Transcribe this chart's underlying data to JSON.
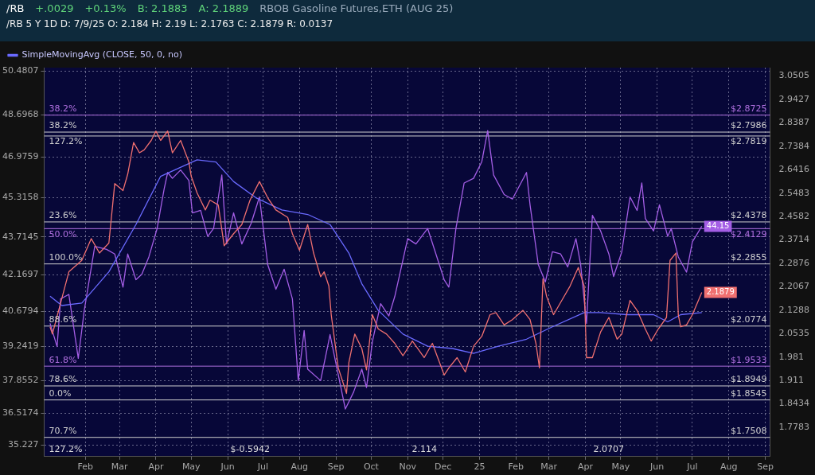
{
  "chart_data": {
    "type": "line",
    "title": "RBOB Gasoline Futures,ETH (AUG 25)",
    "subtitle": "/RB 5 Y 1D   D: 7/9/25   O: 2.184   H: 2.19   L: 2.1763   C: 2.1879   R: 0.0137",
    "annotations": [
      "/RB",
      "+.0029",
      "+0.13%",
      "B: 2.1883",
      "A: 2.1889",
      "38.2%",
      "38.2%",
      "127.2%",
      "23.6%",
      "50.0%",
      "100.0%",
      "88.6%",
      "61.8%",
      "78.6%",
      "0.0%",
      "70.7%",
      "127.2%",
      "$-0.5942",
      "2.114",
      "2.0707"
    ],
    "xlim": [
      "2023-12-28",
      "2025-09-05"
    ],
    "xticks": [
      {
        "value": "2024-02-01",
        "label": "Feb"
      },
      {
        "value": "2024-03-01",
        "label": "Mar"
      },
      {
        "value": "2024-04-01",
        "label": "Apr"
      },
      {
        "value": "2024-05-01",
        "label": "May"
      },
      {
        "value": "2024-06-01",
        "label": "Jun"
      },
      {
        "value": "2024-07-01",
        "label": "Jul"
      },
      {
        "value": "2024-08-01",
        "label": "Aug"
      },
      {
        "value": "2024-09-01",
        "label": "Sep"
      },
      {
        "value": "2024-10-01",
        "label": "Oct"
      },
      {
        "value": "2024-11-01",
        "label": "Nov"
      },
      {
        "value": "2024-12-01",
        "label": "Dec"
      },
      {
        "value": "2025-01-01",
        "label": "25"
      },
      {
        "value": "2025-02-01",
        "label": "Feb"
      },
      {
        "value": "2025-03-01",
        "label": "Mar"
      },
      {
        "value": "2025-04-01",
        "label": "Apr"
      },
      {
        "value": "2025-05-01",
        "label": "May"
      },
      {
        "value": "2025-06-01",
        "label": "Jun"
      },
      {
        "value": "2025-07-01",
        "label": "Jul"
      },
      {
        "value": "2025-08-01",
        "label": "Aug"
      },
      {
        "value": "2025-09-01",
        "label": "Sep"
      }
    ],
    "ylim": [
      34.75,
      50.63
    ],
    "yticks": [
      35.227,
      36.5174,
      37.8552,
      39.2419,
      40.6794,
      42.1697,
      43.7145,
      45.3158,
      46.9759,
      48.6968,
      50.4807
    ],
    "y2lim": [
      1.745,
      3.09
    ],
    "y2ticks": [
      1.7783,
      1.8434,
      1.911,
      1.981,
      2.0535,
      2.1288,
      2.2067,
      2.2876,
      2.3714,
      2.4582,
      2.5483,
      2.6416,
      2.7384,
      2.8387,
      2.9427,
      3.0505
    ],
    "log": "y2",
    "grid": true,
    "legend": "top left",
    "ref_lines": [
      {
        "axis": "y2",
        "value": 2.8725,
        "label": "$2.8725",
        "color": "#b070e0"
      },
      {
        "axis": "y2",
        "value": 2.7986,
        "label": "$2.7986",
        "color": "#cfcfcf"
      },
      {
        "axis": "y2",
        "value": 2.7819,
        "label": "$2.7819",
        "color": "#cfcfcf"
      },
      {
        "axis": "y2",
        "value": 2.4378,
        "label": "$2.4378",
        "color": "#cfcfcf"
      },
      {
        "axis": "y2",
        "value": 2.4129,
        "label": "$2.4129",
        "color": "#b070e0"
      },
      {
        "axis": "y2",
        "value": 2.2855,
        "label": "$2.2855",
        "color": "#cfcfcf"
      },
      {
        "axis": "y2",
        "value": 2.0774,
        "label": "$2.0774",
        "color": "#cfcfcf"
      },
      {
        "axis": "y2",
        "value": 1.9533,
        "label": "$1.9533",
        "color": "#b070e0"
      },
      {
        "axis": "y2",
        "value": 1.8949,
        "label": "$1.8949",
        "color": "#cfcfcf"
      },
      {
        "axis": "y2",
        "value": 1.8545,
        "label": "$1.8545",
        "color": "#cfcfcf"
      },
      {
        "axis": "y2",
        "value": 1.7508,
        "label": "$1.7508",
        "color": "#cfcfcf"
      }
    ],
    "series": [
      {
        "color": "#f07070",
        "axis": "y2",
        "x": [
          "2024-01-02",
          "2024-01-04",
          "2024-01-18",
          "2024-01-29",
          "2024-02-06",
          "2024-02-13",
          "2024-02-21",
          "2024-02-26",
          "2024-03-04",
          "2024-03-08",
          "2024-03-13",
          "2024-03-18",
          "2024-03-22",
          "2024-03-28",
          "2024-04-01",
          "2024-04-05",
          "2024-04-11",
          "2024-04-15",
          "2024-04-22",
          "2024-04-29",
          "2024-05-01",
          "2024-05-06",
          "2024-05-13",
          "2024-05-17",
          "2024-05-24",
          "2024-05-29",
          "2024-06-06",
          "2024-06-13",
          "2024-06-20",
          "2024-06-28",
          "2024-07-05",
          "2024-07-12",
          "2024-07-22",
          "2024-07-26",
          "2024-08-01",
          "2024-08-08",
          "2024-08-13",
          "2024-08-19",
          "2024-08-22",
          "2024-08-26",
          "2024-08-28",
          "2024-09-03",
          "2024-09-10",
          "2024-09-12",
          "2024-09-17",
          "2024-09-23",
          "2024-09-27",
          "2024-10-02",
          "2024-10-07",
          "2024-10-14",
          "2024-10-21",
          "2024-10-28",
          "2024-11-05",
          "2024-11-15",
          "2024-11-22",
          "2024-12-02",
          "2024-12-06",
          "2024-12-13",
          "2024-12-20",
          "2024-12-27",
          "2025-01-03",
          "2025-01-10",
          "2025-01-15",
          "2025-01-22",
          "2025-01-29",
          "2025-02-07",
          "2025-02-13",
          "2025-02-18",
          "2025-02-21",
          "2025-02-24",
          "2025-02-27",
          "2025-03-05",
          "2025-03-12",
          "2025-03-19",
          "2025-03-26",
          "2025-03-31",
          "2025-04-02",
          "2025-04-07",
          "2025-04-14",
          "2025-04-21",
          "2025-04-28",
          "2025-05-02",
          "2025-05-09",
          "2025-05-15",
          "2025-05-22",
          "2025-05-27",
          "2025-06-02",
          "2025-06-09",
          "2025-06-12",
          "2025-06-17",
          "2025-06-19",
          "2025-06-21",
          "2025-06-26",
          "2025-07-01",
          "2025-07-09"
        ],
        "values": [
          2.075,
          2.052,
          2.258,
          2.298,
          2.376,
          2.324,
          2.36,
          2.586,
          2.558,
          2.623,
          2.754,
          2.711,
          2.723,
          2.763,
          2.803,
          2.763,
          2.803,
          2.711,
          2.763,
          2.673,
          2.615,
          2.549,
          2.483,
          2.521,
          2.502,
          2.35,
          2.394,
          2.428,
          2.521,
          2.594,
          2.53,
          2.483,
          2.455,
          2.394,
          2.334,
          2.428,
          2.324,
          2.241,
          2.258,
          2.209,
          2.114,
          1.948,
          1.873,
          1.964,
          2.052,
          2.007,
          1.942,
          2.114,
          2.068,
          2.052,
          2.023,
          1.985,
          2.03,
          1.979,
          2.023,
          1.927,
          1.948,
          1.979,
          1.936,
          2.014,
          2.045,
          2.114,
          2.121,
          2.081,
          2.098,
          2.128,
          2.098,
          2.023,
          1.948,
          2.234,
          2.175,
          2.114,
          2.161,
          2.209,
          2.273,
          2.209,
          1.979,
          1.979,
          2.059,
          2.105,
          2.036,
          2.052,
          2.161,
          2.128,
          2.068,
          2.03,
          2.068,
          2.105,
          2.298,
          2.324,
          2.114,
          2.075,
          2.081,
          2.114,
          2.1879
        ],
        "value_labels": [
          null,
          null,
          null,
          null,
          null,
          null,
          null,
          null,
          null,
          null,
          null,
          null,
          null,
          null,
          null,
          null,
          null,
          null,
          null,
          null,
          null,
          null,
          null,
          null,
          null,
          null,
          null,
          null,
          null,
          null,
          null,
          null,
          null,
          null,
          null,
          null,
          null,
          null,
          null,
          null,
          null,
          null,
          null,
          null,
          null,
          null,
          null,
          null,
          null,
          null,
          null,
          null,
          null,
          null,
          null,
          null,
          null,
          null,
          null,
          null,
          null,
          null,
          null,
          null,
          null,
          null,
          null,
          null,
          null,
          null,
          null,
          null,
          null,
          null,
          null,
          null,
          null,
          null,
          null,
          null,
          null,
          null,
          null,
          null,
          null,
          null,
          null,
          null,
          null,
          null,
          null,
          null,
          null,
          null,
          "2.1879"
        ]
      },
      {
        "name": "SimpleMovingAvg (CLOSE, 50, 0, no)",
        "color": "#6a6aff",
        "axis": "y2",
        "x": [
          "2024-01-02",
          "2024-01-12",
          "2024-01-29",
          "2024-02-21",
          "2024-03-15",
          "2024-04-05",
          "2024-05-06",
          "2024-05-22",
          "2024-06-06",
          "2024-06-25",
          "2024-07-17",
          "2024-08-08",
          "2024-08-27",
          "2024-09-12",
          "2024-09-23",
          "2024-10-07",
          "2024-10-28",
          "2024-11-18",
          "2024-12-09",
          "2024-12-27",
          "2025-01-17",
          "2025-02-10",
          "2025-03-04",
          "2025-03-31",
          "2025-04-14",
          "2025-05-06",
          "2025-05-29",
          "2025-06-10",
          "2025-06-21",
          "2025-07-09"
        ],
        "values": [
          2.175,
          2.144,
          2.152,
          2.258,
          2.428,
          2.615,
          2.682,
          2.673,
          2.594,
          2.53,
          2.483,
          2.466,
          2.428,
          2.324,
          2.217,
          2.128,
          2.052,
          2.014,
          2.007,
          1.992,
          2.014,
          2.036,
          2.075,
          2.121,
          2.121,
          2.114,
          2.114,
          2.091,
          2.114,
          2.121
        ]
      },
      {
        "color": "#a45ee5",
        "axis": "y",
        "x": [
          "2024-01-02",
          "2024-01-08",
          "2024-01-11",
          "2024-01-18",
          "2024-01-26",
          "2024-01-31",
          "2024-02-09",
          "2024-02-19",
          "2024-02-26",
          "2024-03-04",
          "2024-03-08",
          "2024-03-15",
          "2024-03-20",
          "2024-03-26",
          "2024-04-02",
          "2024-04-08",
          "2024-04-11",
          "2024-04-15",
          "2024-04-22",
          "2024-04-29",
          "2024-05-02",
          "2024-05-09",
          "2024-05-15",
          "2024-05-20",
          "2024-05-27",
          "2024-05-31",
          "2024-06-06",
          "2024-06-13",
          "2024-06-21",
          "2024-06-28",
          "2024-07-05",
          "2024-07-12",
          "2024-07-19",
          "2024-07-26",
          "2024-07-31",
          "2024-08-05",
          "2024-08-08",
          "2024-08-19",
          "2024-08-27",
          "2024-09-02",
          "2024-09-09",
          "2024-09-16",
          "2024-09-23",
          "2024-09-27",
          "2024-10-02",
          "2024-10-09",
          "2024-10-16",
          "2024-10-21",
          "2024-11-01",
          "2024-11-08",
          "2024-11-18",
          "2024-11-25",
          "2024-12-02",
          "2024-12-06",
          "2024-12-12",
          "2024-12-19",
          "2024-12-27",
          "2025-01-03",
          "2025-01-08",
          "2025-01-13",
          "2025-01-22",
          "2025-01-29",
          "2025-02-10",
          "2025-02-13",
          "2025-02-20",
          "2025-02-26",
          "2025-03-04",
          "2025-03-11",
          "2025-03-17",
          "2025-03-24",
          "2025-03-28",
          "2025-04-02",
          "2025-04-07",
          "2025-04-14",
          "2025-04-21",
          "2025-04-25",
          "2025-05-02",
          "2025-05-09",
          "2025-05-15",
          "2025-05-19",
          "2025-05-22",
          "2025-05-29",
          "2025-06-03",
          "2025-06-10",
          "2025-06-13",
          "2025-06-19",
          "2025-06-26",
          "2025-07-01",
          "2025-07-09"
        ],
        "values": [
          40.19,
          39.24,
          41.19,
          41.37,
          38.76,
          40.69,
          43.33,
          43.21,
          43.02,
          41.67,
          43.02,
          41.97,
          42.19,
          42.9,
          44.06,
          45.68,
          46.35,
          46.11,
          46.45,
          46.02,
          44.7,
          44.8,
          43.74,
          44.06,
          46.25,
          43.43,
          44.7,
          43.43,
          44.28,
          45.35,
          42.59,
          41.58,
          42.4,
          41.19,
          37.85,
          39.9,
          38.32,
          37.85,
          39.73,
          38.32,
          36.69,
          37.38,
          38.32,
          37.57,
          39.44,
          40.99,
          40.49,
          41.28,
          43.65,
          43.43,
          44.06,
          43.02,
          41.97,
          41.67,
          44.06,
          45.92,
          46.11,
          46.79,
          48.06,
          46.25,
          45.45,
          45.26,
          46.35,
          45.03,
          42.59,
          41.88,
          43.11,
          43.02,
          42.49,
          43.65,
          42.59,
          40.19,
          44.6,
          43.96,
          43.02,
          42.1,
          43.11,
          45.35,
          44.8,
          45.92,
          44.47,
          43.96,
          45.03,
          43.74,
          44.06,
          42.9,
          42.28,
          43.52,
          44.15
        ],
        "value_labels": [
          null,
          null,
          null,
          null,
          null,
          null,
          null,
          null,
          null,
          null,
          null,
          null,
          null,
          null,
          null,
          null,
          null,
          null,
          null,
          null,
          null,
          null,
          null,
          null,
          null,
          null,
          null,
          null,
          null,
          null,
          null,
          null,
          null,
          null,
          null,
          null,
          null,
          null,
          null,
          null,
          null,
          null,
          null,
          null,
          null,
          null,
          null,
          null,
          null,
          null,
          null,
          null,
          null,
          null,
          null,
          null,
          null,
          null,
          null,
          null,
          null,
          null,
          null,
          null,
          null,
          null,
          null,
          null,
          null,
          null,
          null,
          null,
          null,
          null,
          null,
          null,
          null,
          null,
          null,
          null,
          null,
          null,
          null,
          null,
          null,
          null,
          null,
          null,
          "44.15"
        ]
      }
    ]
  }
}
